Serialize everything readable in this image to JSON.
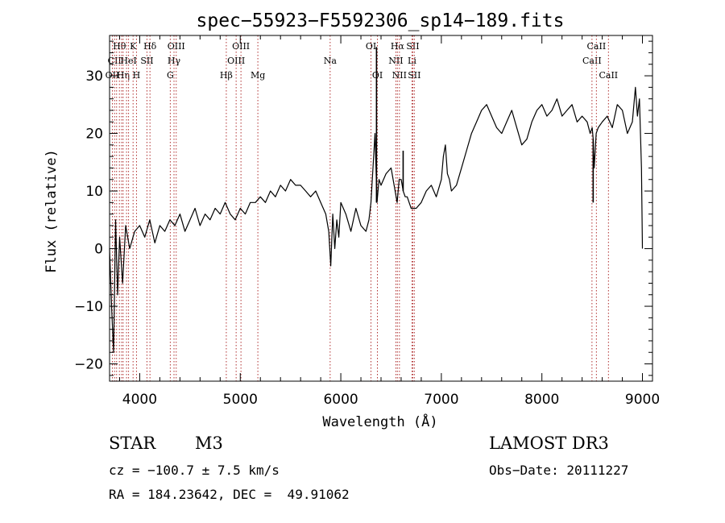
{
  "chart_data": {
    "type": "line",
    "title": "spec−55923−F5592306_sp14−189.fits",
    "xlabel": "Wavelength (Å)",
    "ylabel": "Flux (relative)",
    "xlim": [
      3700,
      9100
    ],
    "ylim": [
      -23,
      37
    ],
    "xticks": [
      {
        "value": 4000,
        "label": "4000"
      },
      {
        "value": 5000,
        "label": "5000"
      },
      {
        "value": 6000,
        "label": "6000"
      },
      {
        "value": 7000,
        "label": "7000"
      },
      {
        "value": 8000,
        "label": "8000"
      },
      {
        "value": 9000,
        "label": "9000"
      }
    ],
    "yticks": [
      {
        "value": -20,
        "label": "−20"
      },
      {
        "value": -10,
        "label": "−10"
      },
      {
        "value": 0,
        "label": "0"
      },
      {
        "value": 10,
        "label": "10"
      },
      {
        "value": 20,
        "label": "20"
      },
      {
        "value": 30,
        "label": "30"
      }
    ],
    "series": [
      {
        "name": "flux",
        "color": "#000000",
        "x": [
          3700,
          3720,
          3740,
          3760,
          3780,
          3800,
          3830,
          3860,
          3900,
          3950,
          4000,
          4050,
          4100,
          4150,
          4200,
          4250,
          4300,
          4350,
          4400,
          4450,
          4500,
          4550,
          4600,
          4650,
          4700,
          4750,
          4800,
          4850,
          4900,
          4950,
          5000,
          5050,
          5100,
          5150,
          5200,
          5250,
          5300,
          5350,
          5400,
          5450,
          5500,
          5550,
          5600,
          5650,
          5700,
          5750,
          5800,
          5850,
          5880,
          5900,
          5920,
          5940,
          5960,
          5980,
          6000,
          6050,
          6100,
          6150,
          6200,
          6250,
          6280,
          6300,
          6320,
          6340,
          6360,
          6380,
          6400,
          6450,
          6500,
          6540,
          6560,
          6580,
          6600,
          6620,
          6640,
          6660,
          6680,
          6700,
          6720,
          6750,
          6800,
          6850,
          6900,
          6950,
          7000,
          7020,
          7040,
          7060,
          7080,
          7100,
          7150,
          7200,
          7250,
          7300,
          7350,
          7400,
          7450,
          7500,
          7550,
          7600,
          7650,
          7700,
          7750,
          7800,
          7850,
          7900,
          7950,
          8000,
          8050,
          8100,
          8150,
          8200,
          8250,
          8300,
          8350,
          8400,
          8450,
          8480,
          8500,
          8510,
          8520,
          8540,
          8560,
          8600,
          8650,
          8700,
          8750,
          8800,
          8850,
          8900,
          8930,
          8950,
          8970,
          8990,
          9000
        ],
        "y": [
          0,
          -10,
          -18,
          5,
          -8,
          2,
          -6,
          4,
          0,
          3,
          4,
          2,
          5,
          1,
          4,
          3,
          5,
          4,
          6,
          3,
          5,
          7,
          4,
          6,
          5,
          7,
          6,
          8,
          6,
          5,
          7,
          6,
          8,
          8,
          9,
          8,
          10,
          9,
          11,
          10,
          12,
          11,
          11,
          10,
          9,
          10,
          8,
          6,
          3,
          -3,
          6,
          0,
          5,
          2,
          8,
          6,
          3,
          7,
          4,
          3,
          5,
          8,
          14,
          20,
          8,
          12,
          11,
          13,
          14,
          10,
          8,
          12,
          12,
          10,
          9,
          9,
          8,
          7,
          7,
          7,
          8,
          10,
          11,
          9,
          12,
          16,
          18,
          13,
          12,
          10,
          11,
          14,
          17,
          20,
          22,
          24,
          25,
          23,
          21,
          20,
          22,
          24,
          21,
          18,
          19,
          22,
          24,
          25,
          23,
          24,
          26,
          23,
          24,
          25,
          22,
          23,
          22,
          20,
          21,
          19,
          14,
          20,
          21,
          22,
          23,
          21,
          25,
          24,
          20,
          22,
          28,
          23,
          26,
          14,
          0
        ],
        "markers": [
          {
            "name": "spike-narrow-6355",
            "x": 6355,
            "top": 35
          },
          {
            "name": "spike-narrow-6620",
            "x": 6620,
            "top": 17
          },
          {
            "name": "dip-narrow-8510",
            "x": 8510,
            "bottom": 8
          }
        ]
      }
    ],
    "line_markers": [
      {
        "x": 3728,
        "labels": [
          "OII"
        ],
        "row": 2
      },
      {
        "x": 3750,
        "labels": [
          "CII"
        ],
        "row": 1
      },
      {
        "x": 3770,
        "labels": [],
        "row": 0
      },
      {
        "x": 3798,
        "labels": [
          "Hθ"
        ],
        "row": 0
      },
      {
        "x": 3820,
        "labels": [],
        "row": 0
      },
      {
        "x": 3835,
        "labels": [
          "Hη"
        ],
        "row": 2
      },
      {
        "x": 3869,
        "labels": [],
        "row": 0
      },
      {
        "x": 3889,
        "labels": [
          "HeI"
        ],
        "row": 1
      },
      {
        "x": 3934,
        "labels": [
          "K"
        ],
        "row": 0
      },
      {
        "x": 3968,
        "labels": [
          "H"
        ],
        "row": 2
      },
      {
        "x": 4072,
        "labels": [
          "SII"
        ],
        "row": 1
      },
      {
        "x": 4102,
        "labels": [
          "Hδ"
        ],
        "row": 0
      },
      {
        "x": 4304,
        "labels": [
          "G"
        ],
        "row": 2
      },
      {
        "x": 4341,
        "labels": [
          "Hγ"
        ],
        "row": 1
      },
      {
        "x": 4363,
        "labels": [
          "OIII"
        ],
        "row": 0
      },
      {
        "x": 4861,
        "labels": [
          "Hβ"
        ],
        "row": 2
      },
      {
        "x": 4959,
        "labels": [
          "OIII"
        ],
        "row": 1
      },
      {
        "x": 5007,
        "labels": [
          "OIII"
        ],
        "row": 0
      },
      {
        "x": 5175,
        "labels": [
          "Mg"
        ],
        "row": 2
      },
      {
        "x": 5894,
        "labels": [
          "Na"
        ],
        "row": 1
      },
      {
        "x": 6300,
        "labels": [
          "OI"
        ],
        "row": 0
      },
      {
        "x": 6364,
        "labels": [
          "OI"
        ],
        "row": 2
      },
      {
        "x": 6548,
        "labels": [
          "NII"
        ],
        "row": 1
      },
      {
        "x": 6563,
        "labels": [
          "Hα"
        ],
        "row": 0
      },
      {
        "x": 6583,
        "labels": [
          "NII"
        ],
        "row": 2
      },
      {
        "x": 6708,
        "labels": [
          "Li"
        ],
        "row": 1
      },
      {
        "x": 6716,
        "labels": [
          "SII"
        ],
        "row": 0
      },
      {
        "x": 6731,
        "labels": [
          "SII"
        ],
        "row": 2
      },
      {
        "x": 8498,
        "labels": [
          "CaII"
        ],
        "row": 1
      },
      {
        "x": 8542,
        "labels": [
          "CaII"
        ],
        "row": 0
      },
      {
        "x": 8662,
        "labels": [
          "CaII"
        ],
        "row": 2
      }
    ],
    "line_marker_color": "#b03030"
  },
  "info": {
    "object_class": "STAR",
    "subclass": "M3",
    "survey": "LAMOST DR3",
    "redshift_line": "cz = −100.7 ± 7.5 km/s",
    "obs_date_line": "Obs−Date: 20111227",
    "coords_line": "RA = 184.23642, DEC =  49.91062"
  }
}
